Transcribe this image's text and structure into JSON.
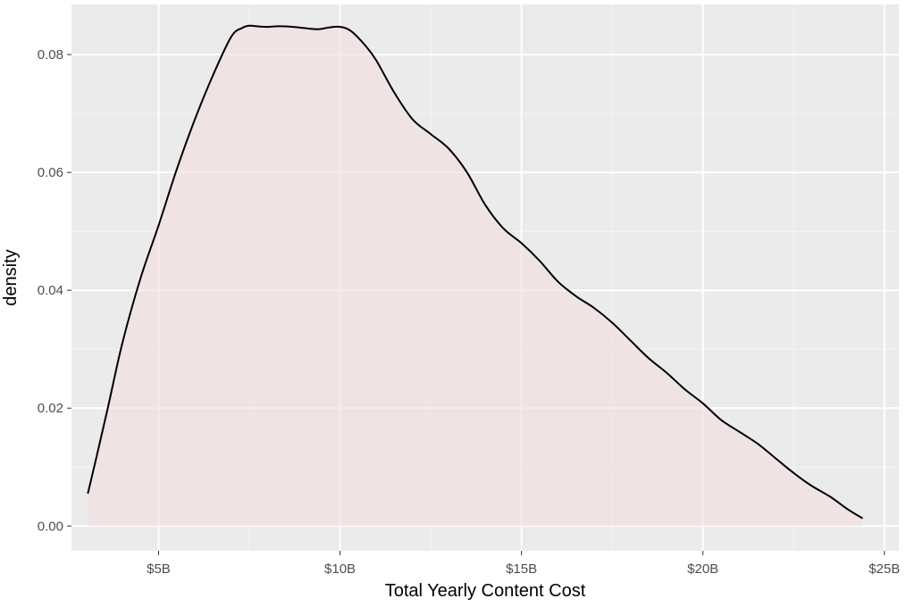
{
  "chart_data": {
    "type": "area",
    "title": "",
    "xlabel": "Total Yearly Content Cost",
    "ylabel": "density",
    "xlim": [
      2.6,
      25.4
    ],
    "ylim": [
      -0.0042,
      0.0885
    ],
    "x_ticks": [
      {
        "value": 5,
        "label": "$5B"
      },
      {
        "value": 10,
        "label": "$10B"
      },
      {
        "value": 15,
        "label": "$15B"
      },
      {
        "value": 20,
        "label": "$20B"
      },
      {
        "value": 25,
        "label": "$25B"
      }
    ],
    "y_ticks": [
      {
        "value": 0.0,
        "label": "0.00"
      },
      {
        "value": 0.02,
        "label": "0.02"
      },
      {
        "value": 0.04,
        "label": "0.04"
      },
      {
        "value": 0.06,
        "label": "0.06"
      },
      {
        "value": 0.08,
        "label": "0.08"
      }
    ],
    "grid": true,
    "colors": {
      "panel_background": "#ebebeb",
      "grid_major": "#ffffff",
      "grid_minor": "#f5f5f5",
      "fill": "#f2dede",
      "fill_opacity": "0.6",
      "line": "#000000"
    },
    "series": [
      {
        "x": [
          3.05,
          3.3,
          3.6,
          4.0,
          4.5,
          5.0,
          5.5,
          6.0,
          6.5,
          7.0,
          7.3,
          7.5,
          7.7,
          8.0,
          8.3,
          8.7,
          9.0,
          9.4,
          9.7,
          10.0,
          10.3,
          10.7,
          11.0,
          11.5,
          12.0,
          12.5,
          13.0,
          13.5,
          14.0,
          14.5,
          15.0,
          15.5,
          16.0,
          16.5,
          17.0,
          17.5,
          18.0,
          18.5,
          19.0,
          19.5,
          20.0,
          20.5,
          21.0,
          21.5,
          22.0,
          22.5,
          23.0,
          23.5,
          24.0,
          24.4
        ],
        "y": [
          0.0055,
          0.012,
          0.02,
          0.031,
          0.042,
          0.051,
          0.0605,
          0.069,
          0.0765,
          0.083,
          0.0845,
          0.0849,
          0.0848,
          0.0847,
          0.0848,
          0.0847,
          0.0845,
          0.0843,
          0.0846,
          0.0847,
          0.084,
          0.0815,
          0.079,
          0.0735,
          0.069,
          0.0665,
          0.064,
          0.06,
          0.0545,
          0.0505,
          0.048,
          0.045,
          0.0415,
          0.039,
          0.037,
          0.0345,
          0.0315,
          0.0285,
          0.026,
          0.0232,
          0.0208,
          0.018,
          0.016,
          0.014,
          0.0115,
          0.009,
          0.0068,
          0.005,
          0.0028,
          0.0013
        ]
      }
    ]
  }
}
